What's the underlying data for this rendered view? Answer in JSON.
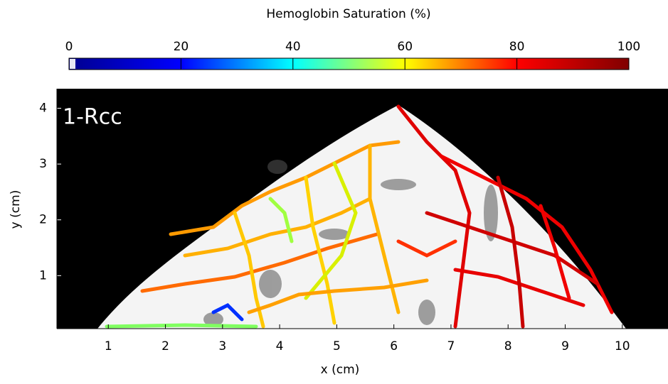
{
  "chart_data": {
    "type": "image",
    "title": "Hemoglobin Saturation (%)",
    "annotation": "1-Rcc",
    "x_label": "x (cm)",
    "y_label": "y (cm)",
    "xlim": [
      0.1,
      10.8
    ],
    "xticks": [
      1,
      2,
      3,
      4,
      5,
      6,
      7,
      8,
      9,
      10
    ],
    "ylim": [
      0.05,
      4.35
    ],
    "yticks": [
      1,
      2,
      3,
      4
    ],
    "clim": [
      0,
      100
    ],
    "cticks": [
      0,
      20,
      40,
      60,
      80,
      100
    ],
    "colormap": [
      "#00008f",
      "#0000ff",
      "#00ffff",
      "#ffff00",
      "#ff0000",
      "#800000"
    ],
    "background": "#000000"
  }
}
